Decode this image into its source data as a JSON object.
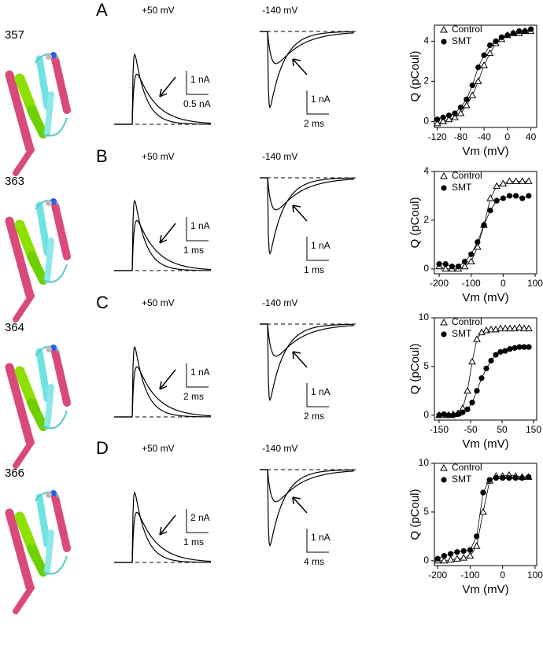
{
  "panels": [
    {
      "letter": "A",
      "residue": "357",
      "left_title": "+50 mV",
      "left_scale": [
        "1 nA",
        "0.5 nA"
      ],
      "right_title": "-140 mV",
      "right_scale": [
        "1 nA",
        "2 ms"
      ]
    },
    {
      "letter": "B",
      "residue": "363",
      "left_title": "+50 mV",
      "left_scale": [
        "1 nA",
        "1 ms"
      ],
      "right_title": "-140 mV",
      "right_scale": [
        "1 nA",
        "1 ms"
      ]
    },
    {
      "letter": "C",
      "residue": "364",
      "left_title": "+50 mV",
      "left_scale": [
        "1 nA",
        "2 ms"
      ],
      "right_title": "-140 mV",
      "right_scale": [
        "1 nA",
        "2 ms"
      ]
    },
    {
      "letter": "D",
      "residue": "366",
      "left_title": "+50 mV",
      "left_scale": [
        "2 nA",
        "1 ms"
      ],
      "right_title": "-140 mV",
      "right_scale": [
        "1 nA",
        "4 ms"
      ]
    }
  ],
  "chart_data": [
    {
      "type": "scatter",
      "xlabel": "Vm (mV)",
      "ylabel": "Q (pCoul)",
      "x": [
        -120,
        -110,
        -100,
        -90,
        -80,
        -70,
        -60,
        -50,
        -40,
        -30,
        -20,
        -10,
        0,
        10,
        20,
        30,
        40
      ],
      "series": [
        {
          "name": "Control",
          "color": "#000000",
          "marker": "triangle",
          "values": [
            -0.1,
            0,
            0.1,
            0.2,
            0.4,
            0.8,
            1.3,
            2.0,
            2.8,
            3.4,
            3.9,
            4.1,
            4.3,
            4.4,
            4.4,
            4.5,
            4.5
          ]
        },
        {
          "name": "SMT",
          "color": "#000000",
          "marker": "circle",
          "values": [
            0.1,
            0.2,
            0.3,
            0.4,
            0.7,
            1.1,
            1.8,
            2.7,
            3.3,
            3.8,
            4.0,
            4.2,
            4.3,
            4.4,
            4.5,
            4.5,
            4.6
          ]
        }
      ],
      "xlim": [
        -125,
        50
      ],
      "xticks": [
        -120,
        -80,
        -40,
        0,
        40
      ],
      "ylim": [
        -0.3,
        4.8
      ],
      "yticks": [
        0,
        2,
        4
      ]
    },
    {
      "type": "scatter",
      "xlabel": "Vm (mV)",
      "ylabel": "Q (pCoul)",
      "x": [
        -200,
        -180,
        -160,
        -140,
        -120,
        -100,
        -80,
        -60,
        -40,
        -20,
        0,
        20,
        40,
        60,
        80
      ],
      "series": [
        {
          "name": "Control",
          "color": "#000000",
          "marker": "triangle",
          "values": [
            0.1,
            0,
            0,
            0,
            0.1,
            0.3,
            0.9,
            1.8,
            2.9,
            3.4,
            3.5,
            3.6,
            3.6,
            3.6,
            3.6
          ]
        },
        {
          "name": "SMT",
          "color": "#000000",
          "marker": "circle",
          "values": [
            0.2,
            0.2,
            0.1,
            0.1,
            0.3,
            0.6,
            1.1,
            1.8,
            2.4,
            2.8,
            2.9,
            3.0,
            3.0,
            2.9,
            3.0
          ]
        }
      ],
      "xlim": [
        -215,
        105
      ],
      "xticks": [
        -200,
        -100,
        0,
        100
      ],
      "ylim": [
        -0.2,
        4
      ],
      "yticks": [
        0,
        2,
        4
      ]
    },
    {
      "type": "scatter",
      "xlabel": "Vm (mV)",
      "ylabel": "Q (pCoul)",
      "x": [
        -150,
        -135,
        -120,
        -105,
        -90,
        -75,
        -60,
        -45,
        -30,
        -15,
        0,
        15,
        30,
        45,
        60,
        75,
        90,
        105,
        120,
        135
      ],
      "series": [
        {
          "name": "Control",
          "color": "#000000",
          "marker": "triangle",
          "values": [
            0,
            0,
            0,
            0.1,
            0.2,
            0.7,
            2.5,
            5.5,
            7.8,
            8.5,
            8.7,
            8.8,
            8.8,
            8.9,
            8.9,
            8.9,
            8.9,
            9.0,
            8.9,
            8.9
          ]
        },
        {
          "name": "SMT",
          "color": "#000000",
          "marker": "circle",
          "values": [
            0,
            0.1,
            0,
            0,
            0.1,
            0.3,
            0.6,
            1.3,
            2.5,
            3.8,
            4.8,
            5.6,
            6.2,
            6.5,
            6.6,
            6.8,
            6.9,
            7.0,
            7.0,
            7.0
          ]
        }
      ],
      "xlim": [
        -165,
        160
      ],
      "xticks": [
        -150,
        -50,
        50,
        150
      ],
      "ylim": [
        -0.5,
        10
      ],
      "yticks": [
        0,
        5,
        10
      ]
    },
    {
      "type": "scatter",
      "xlabel": "Vm (mV)",
      "ylabel": "Q (pCoul)",
      "x": [
        -200,
        -180,
        -160,
        -140,
        -120,
        -100,
        -80,
        -60,
        -40,
        -20,
        0,
        20,
        40,
        60,
        80
      ],
      "series": [
        {
          "name": "Control",
          "color": "#000000",
          "marker": "triangle",
          "values": [
            0,
            0,
            0.1,
            0.2,
            0.3,
            0.5,
            1.5,
            5.0,
            8.2,
            8.7,
            8.7,
            8.8,
            8.7,
            8.6,
            8.6
          ]
        },
        {
          "name": "SMT",
          "color": "#000000",
          "marker": "circle",
          "values": [
            0.2,
            0.5,
            0.7,
            0.9,
            1.0,
            1.1,
            2.5,
            7.0,
            8.3,
            8.5,
            8.5,
            8.5,
            8.5,
            8.5,
            8.6
          ]
        }
      ],
      "xlim": [
        -210,
        105
      ],
      "xticks": [
        -200,
        -100,
        0,
        100
      ],
      "ylim": [
        -0.5,
        10
      ],
      "yticks": [
        0,
        5,
        10
      ]
    }
  ]
}
